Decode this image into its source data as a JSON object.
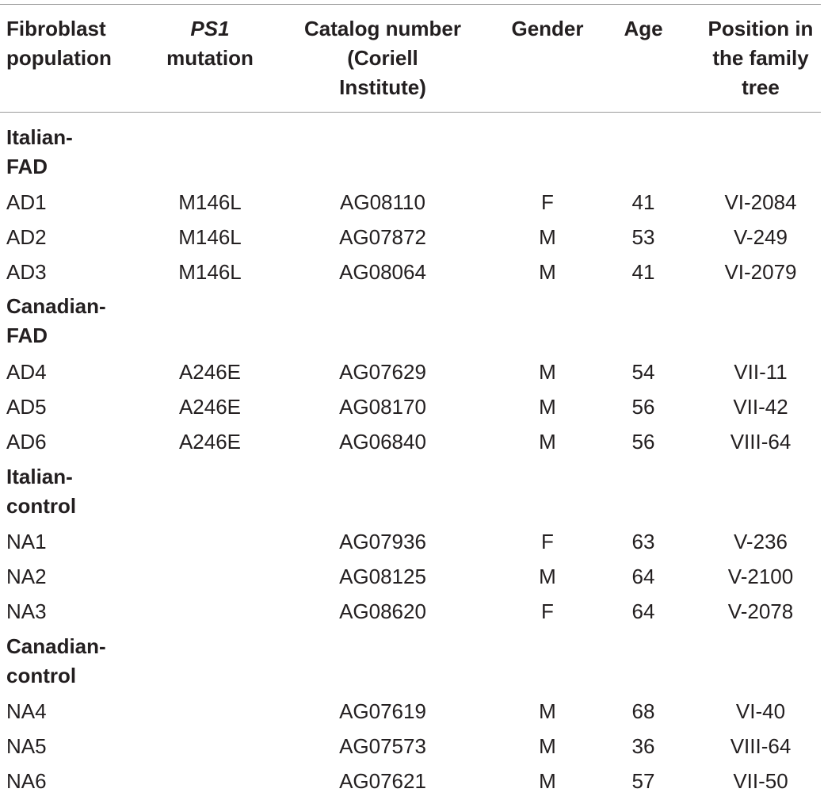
{
  "table": {
    "headers": {
      "population": [
        "Fibroblast",
        "population"
      ],
      "mutation_gene": "PS1",
      "mutation_word": "mutation",
      "catalog": [
        "Catalog number",
        "(Coriell",
        "Institute)"
      ],
      "gender": "Gender",
      "age": "Age",
      "position": [
        "Position in",
        "the family",
        "tree"
      ]
    },
    "groups": [
      {
        "label": [
          "Italian-",
          "FAD"
        ],
        "rows": [
          {
            "population": "AD1",
            "mutation": "M146L",
            "catalog": "AG08110",
            "gender": "F",
            "age": "41",
            "position": "VI-2084"
          },
          {
            "population": "AD2",
            "mutation": "M146L",
            "catalog": "AG07872",
            "gender": "M",
            "age": "53",
            "position": "V-249"
          },
          {
            "population": "AD3",
            "mutation": "M146L",
            "catalog": "AG08064",
            "gender": "M",
            "age": "41",
            "position": "VI-2079"
          }
        ]
      },
      {
        "label": [
          "Canadian-",
          "FAD"
        ],
        "rows": [
          {
            "population": "AD4",
            "mutation": "A246E",
            "catalog": "AG07629",
            "gender": "M",
            "age": "54",
            "position": "VII-11"
          },
          {
            "population": "AD5",
            "mutation": "A246E",
            "catalog": "AG08170",
            "gender": "M",
            "age": "56",
            "position": "VII-42"
          },
          {
            "population": "AD6",
            "mutation": "A246E",
            "catalog": "AG06840",
            "gender": "M",
            "age": "56",
            "position": "VIII-64"
          }
        ]
      },
      {
        "label": [
          "Italian-",
          "control"
        ],
        "rows": [
          {
            "population": "NA1",
            "mutation": "",
            "catalog": "AG07936",
            "gender": "F",
            "age": "63",
            "position": "V-236"
          },
          {
            "population": "NA2",
            "mutation": "",
            "catalog": "AG08125",
            "gender": "M",
            "age": "64",
            "position": "V-2100"
          },
          {
            "population": "NA3",
            "mutation": "",
            "catalog": "AG08620",
            "gender": "F",
            "age": "64",
            "position": "V-2078"
          }
        ]
      },
      {
        "label": [
          "Canadian-",
          "control"
        ],
        "rows": [
          {
            "population": "NA4",
            "mutation": "",
            "catalog": "AG07619",
            "gender": "M",
            "age": "68",
            "position": "VI-40"
          },
          {
            "population": "NA5",
            "mutation": "",
            "catalog": "AG07573",
            "gender": "M",
            "age": "36",
            "position": "VIII-64"
          },
          {
            "population": "NA6",
            "mutation": "",
            "catalog": "AG07621",
            "gender": "M",
            "age": "57",
            "position": "VII-50"
          }
        ]
      }
    ]
  }
}
